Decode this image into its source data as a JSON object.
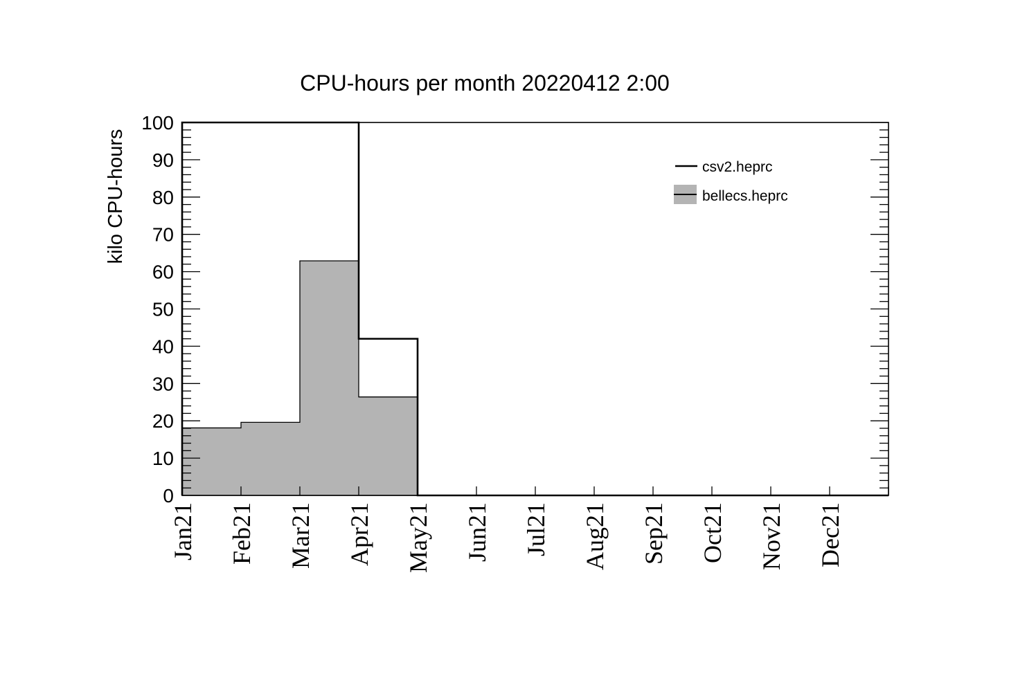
{
  "window": {
    "background": "#ffffff"
  },
  "chart_data": {
    "type": "bar",
    "subtype": "step-histogram",
    "title": "CPU-hours per month 20220412 2:00",
    "xlabel": "",
    "ylabel": "kilo CPU-hours",
    "categories": [
      "Jan21",
      "Feb21",
      "Mar21",
      "Apr21",
      "May21",
      "Jun21",
      "Jul21",
      "Aug21",
      "Sep21",
      "Oct21",
      "Nov21",
      "Dec21"
    ],
    "ylim": [
      0,
      100
    ],
    "y_major_ticks": [
      0,
      10,
      20,
      30,
      40,
      50,
      60,
      70,
      80,
      90,
      100
    ],
    "y_tick_labels": [
      "0",
      "10",
      "20",
      "30",
      "40",
      "50",
      "60",
      "70",
      "80",
      "90",
      "100"
    ],
    "y_minor_step": 2,
    "grid": false,
    "legend_position": "top-right-inside",
    "series": [
      {
        "name": "csv2.heprc",
        "style": "outline",
        "line_color": "#000000",
        "values": [
          100,
          100,
          100,
          42,
          0,
          0,
          0,
          0,
          0,
          0,
          0,
          0
        ]
      },
      {
        "name": "bellecs.heprc",
        "style": "filled",
        "fill_color": "#b4b4b4",
        "line_color": "#000000",
        "values": [
          18.1,
          19.6,
          62.9,
          26.4,
          0,
          0,
          0,
          0,
          0,
          0,
          0,
          0
        ]
      }
    ]
  }
}
